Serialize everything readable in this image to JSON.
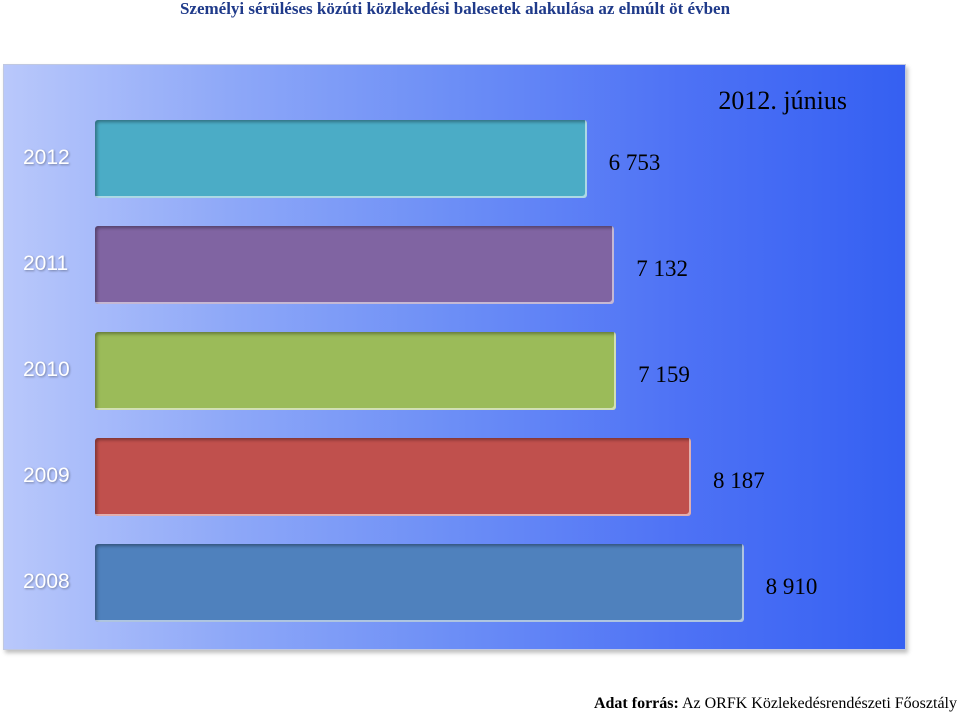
{
  "title": "Személyi sérüléses közúti közlekedési balesetek alakulása az elmúlt öt évben",
  "chart_data": {
    "type": "bar",
    "orientation": "horizontal",
    "subtitle": "2012.  június",
    "categories": [
      "2012",
      "2011",
      "2010",
      "2009",
      "2008"
    ],
    "values": [
      6753,
      7132,
      7159,
      8187,
      8910
    ],
    "value_labels": [
      "6 753",
      "7 132",
      "7 159",
      "8 187",
      "8 910"
    ],
    "colors": [
      "#4bacc6",
      "#8064a2",
      "#9bbb59",
      "#c0504d",
      "#4f81bd"
    ],
    "xlim": [
      0,
      10000
    ],
    "grid": false
  },
  "source": {
    "label": "Adat forrás:",
    "text": " Az ORFK Közlekedésrendészeti Főosztály"
  }
}
